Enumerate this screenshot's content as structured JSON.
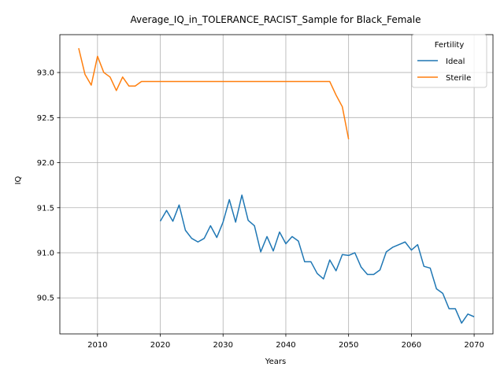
{
  "chart_data": {
    "type": "line",
    "title": "Average_IQ_in_TOLERANCE_RACIST_Sample for Black_Female",
    "xlabel": "Years",
    "ylabel": "IQ",
    "xlim": [
      2004,
      2073
    ],
    "ylim": [
      90.1,
      93.42
    ],
    "xticks": [
      2010,
      2020,
      2030,
      2040,
      2050,
      2060,
      2070
    ],
    "yticks": [
      90.5,
      91.0,
      91.5,
      92.0,
      92.5,
      93.0
    ],
    "grid": true,
    "legend": {
      "title": "Fertility",
      "position": "top-right"
    },
    "series": [
      {
        "name": "Ideal",
        "color": "#1f77b4",
        "x": [
          2020,
          2021,
          2022,
          2023,
          2024,
          2025,
          2026,
          2027,
          2028,
          2029,
          2030,
          2031,
          2032,
          2033,
          2034,
          2035,
          2036,
          2037,
          2038,
          2039,
          2040,
          2041,
          2042,
          2043,
          2044,
          2045,
          2046,
          2047,
          2048,
          2049,
          2050,
          2051,
          2052,
          2053,
          2054,
          2055,
          2056,
          2057,
          2058,
          2059,
          2060,
          2061,
          2062,
          2063,
          2064,
          2065,
          2066,
          2067,
          2068,
          2069,
          2070
        ],
        "y": [
          91.35,
          91.47,
          91.35,
          91.53,
          91.25,
          91.16,
          91.12,
          91.16,
          91.3,
          91.17,
          91.34,
          91.59,
          91.34,
          91.64,
          91.36,
          91.3,
          91.01,
          91.18,
          91.02,
          91.23,
          91.1,
          91.18,
          91.13,
          90.9,
          90.9,
          90.77,
          90.71,
          90.92,
          90.8,
          90.98,
          90.97,
          91.0,
          90.84,
          90.76,
          90.76,
          90.81,
          91.01,
          91.06,
          91.09,
          91.12,
          91.03,
          91.09,
          90.85,
          90.83,
          90.6,
          90.55,
          90.38,
          90.38,
          90.22,
          90.32,
          90.29
        ]
      },
      {
        "name": "Sterile",
        "color": "#ff7f0e",
        "x": [
          2007,
          2008,
          2009,
          2010,
          2011,
          2012,
          2013,
          2014,
          2015,
          2016,
          2017,
          2018,
          2019,
          2020,
          2021,
          2022,
          2023,
          2024,
          2025,
          2026,
          2027,
          2028,
          2029,
          2030,
          2031,
          2032,
          2033,
          2034,
          2035,
          2036,
          2037,
          2038,
          2039,
          2040,
          2041,
          2042,
          2043,
          2044,
          2045,
          2046,
          2047,
          2048,
          2049,
          2050
        ],
        "y": [
          93.27,
          92.98,
          92.86,
          93.18,
          93.0,
          92.95,
          92.8,
          92.95,
          92.85,
          92.85,
          92.9,
          92.9,
          92.9,
          92.9,
          92.9,
          92.9,
          92.9,
          92.9,
          92.9,
          92.9,
          92.9,
          92.9,
          92.9,
          92.9,
          92.9,
          92.9,
          92.9,
          92.9,
          92.9,
          92.9,
          92.9,
          92.9,
          92.9,
          92.9,
          92.9,
          92.9,
          92.9,
          92.9,
          92.9,
          92.9,
          92.9,
          92.75,
          92.62,
          92.26
        ]
      }
    ]
  }
}
